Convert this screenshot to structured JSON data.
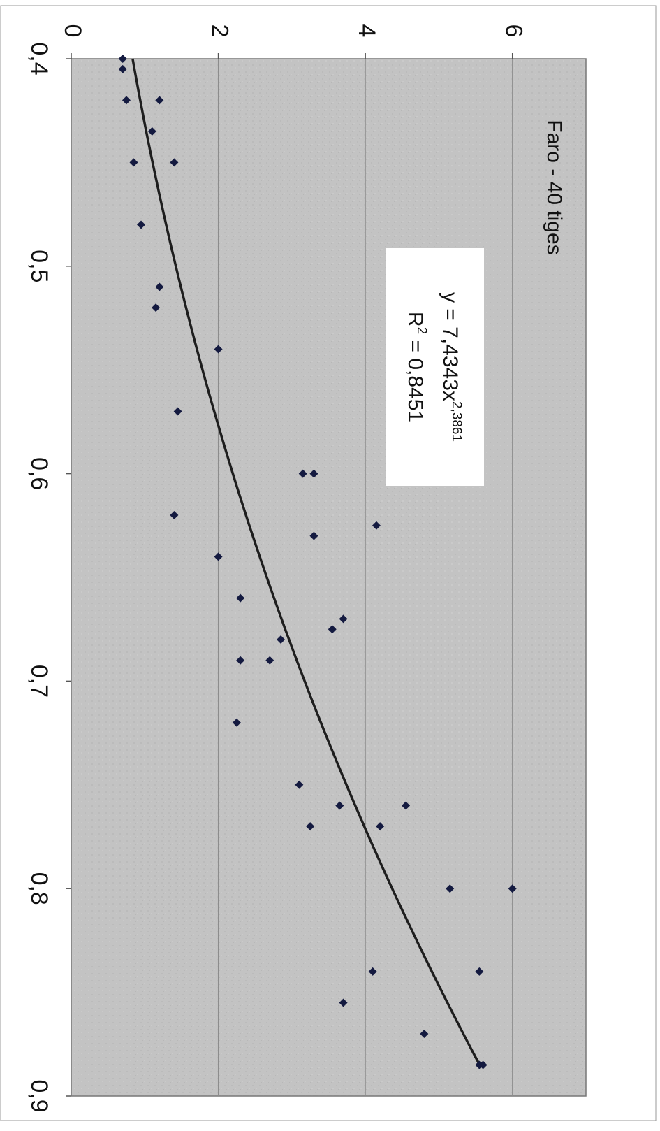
{
  "chart_data": {
    "type": "scatter",
    "title": "Faro - 40 tiges",
    "xlim": [
      0.4,
      0.9
    ],
    "ylim": [
      0,
      7
    ],
    "x_ticks": [
      "0,4",
      "0,5",
      "0,6",
      "0,7",
      "0,8",
      "0,9"
    ],
    "y_ticks": [
      "0",
      "2",
      "4",
      "6"
    ],
    "grid": true,
    "rotation": "rotated 90 degrees clockwise",
    "trendline": {
      "type": "power",
      "equation_prefix": "y = 7,4343x",
      "equation_exponent": "2,3861",
      "r2_prefix": "R",
      "r2_power": "2",
      "r2_suffix": " = 0,8451",
      "coefficient": 7.4343,
      "exponent": 2.3861,
      "x_range": [
        0.4,
        0.885
      ]
    },
    "series": [
      {
        "x": [
          0.4,
          0.405,
          0.42,
          0.42,
          0.435,
          0.45,
          0.45,
          0.48,
          0.51,
          0.52,
          0.54,
          0.57,
          0.6,
          0.6,
          0.62,
          0.625,
          0.63,
          0.64,
          0.66,
          0.67,
          0.675,
          0.68,
          0.69,
          0.69,
          0.72,
          0.75,
          0.76,
          0.76,
          0.77,
          0.77,
          0.8,
          0.8,
          0.84,
          0.84,
          0.855,
          0.87,
          0.885,
          0.885
        ],
        "y": [
          0.7,
          0.7,
          0.75,
          1.2,
          1.1,
          0.85,
          1.4,
          0.95,
          1.2,
          1.15,
          2.0,
          1.45,
          3.15,
          3.3,
          1.4,
          4.15,
          3.3,
          2.0,
          2.3,
          3.7,
          3.55,
          2.85,
          2.3,
          2.7,
          2.25,
          3.1,
          3.65,
          4.55,
          3.25,
          4.2,
          5.15,
          6.0,
          4.1,
          5.55,
          3.7,
          4.8,
          5.55,
          5.6
        ]
      }
    ]
  }
}
